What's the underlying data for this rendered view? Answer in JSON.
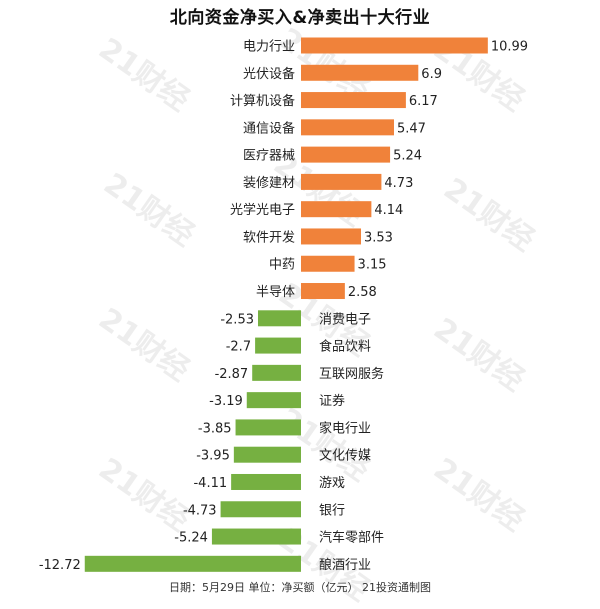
{
  "chart_data": {
    "type": "bar",
    "orientation": "horizontal",
    "title": "北向资金净买入&净卖出十大行业",
    "categories": [
      "电力行业",
      "光伏设备",
      "计算机设备",
      "通信设备",
      "医疗器械",
      "装修建材",
      "光学光电子",
      "软件开发",
      "中药",
      "半导体",
      "消费电子",
      "食品饮料",
      "互联网服务",
      "证券",
      "家电行业",
      "文化传媒",
      "游戏",
      "银行",
      "汽车零部件",
      "酿酒行业"
    ],
    "values": [
      10.99,
      6.9,
      6.17,
      5.47,
      5.24,
      4.73,
      4.14,
      3.53,
      3.15,
      2.58,
      -2.53,
      -2.7,
      -2.87,
      -3.19,
      -3.85,
      -3.95,
      -4.11,
      -4.73,
      -5.24,
      -12.72
    ],
    "value_labels": [
      "10.99",
      "6.9",
      "6.17",
      "5.47",
      "5.24",
      "4.73",
      "4.14",
      "3.53",
      "3.15",
      "2.58",
      "-2.53",
      "-2.7",
      "-2.87",
      "-3.19",
      "-3.85",
      "-3.95",
      "-4.11",
      "-4.73",
      "-5.24",
      "-12.72"
    ],
    "colors": {
      "positive": "#F0823A",
      "negative": "#76B041"
    },
    "footer": "日期：5月29日 单位：净买额（亿元） 21投资通制图",
    "watermark": "21财经"
  }
}
